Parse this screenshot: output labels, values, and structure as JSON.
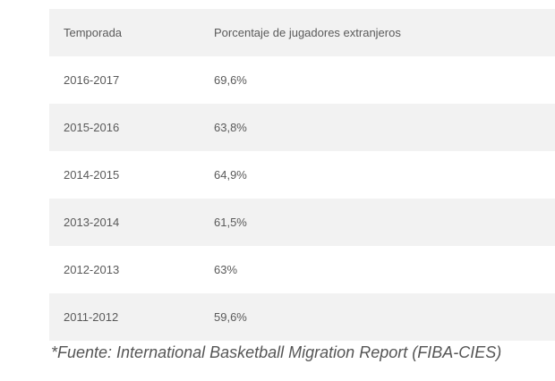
{
  "table": {
    "headers": {
      "season": "Temporada",
      "percentage": "Porcentaje de jugadores extranjeros"
    },
    "rows": [
      {
        "season": "2016-2017",
        "percentage": "69,6%"
      },
      {
        "season": "2015-2016",
        "percentage": "63,8%"
      },
      {
        "season": "2014-2015",
        "percentage": "64,9%"
      },
      {
        "season": "2013-2014",
        "percentage": "61,5%"
      },
      {
        "season": "2012-2013",
        "percentage": "63%"
      },
      {
        "season": "2011-2012",
        "percentage": "59,6%"
      }
    ]
  },
  "source": "*Fuente: International Basketball Migration Report (FIBA-CIES)",
  "colors": {
    "row_shade": "#f2f2f2",
    "text": "#5a5a5a"
  }
}
